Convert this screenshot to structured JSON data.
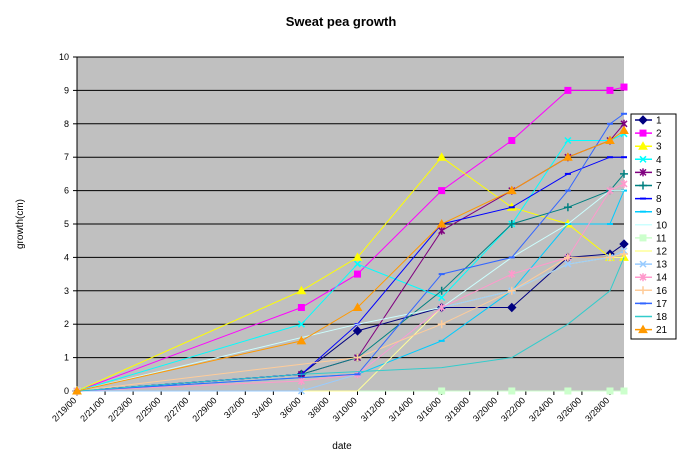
{
  "chart_data": {
    "type": "line",
    "title": "Sweat pea growth",
    "xlabel": "date",
    "ylabel": "growth(cm)",
    "ylim": [
      0,
      10
    ],
    "yticks": [
      "0",
      "1",
      "2",
      "3",
      "4",
      "5",
      "6",
      "7",
      "8",
      "9",
      "10"
    ],
    "xlim": [
      "2/19/00",
      "3/29/00"
    ],
    "xticks": [
      "2/19/00",
      "2/21/00",
      "2/23/00",
      "2/25/00",
      "2/27/00",
      "2/29/00",
      "3/2/00",
      "3/4/00",
      "3/6/00",
      "3/8/00",
      "3/10/00",
      "3/12/00",
      "3/14/00",
      "3/16/00",
      "3/18/00",
      "3/20/00",
      "3/22/00",
      "3/24/00",
      "3/26/00",
      "3/28/00"
    ],
    "grid": "horizontal",
    "legend": "right",
    "series": [
      {
        "name": "1",
        "color": "#000080",
        "marker": "diamond",
        "points": [
          [
            "2/19/00",
            0
          ],
          [
            "3/6/00",
            0.5
          ],
          [
            "3/10/00",
            1.8
          ],
          [
            "3/16/00",
            2.5
          ],
          [
            "3/21/00",
            2.5
          ],
          [
            "3/25/00",
            4
          ],
          [
            "3/28/00",
            4.1
          ],
          [
            "3/29/00",
            4.4
          ]
        ]
      },
      {
        "name": "2",
        "color": "#FF00FF",
        "marker": "square",
        "points": [
          [
            "2/19/00",
            0
          ],
          [
            "3/6/00",
            2.5
          ],
          [
            "3/10/00",
            3.5
          ],
          [
            "3/16/00",
            6
          ],
          [
            "3/21/00",
            7.5
          ],
          [
            "3/25/00",
            9
          ],
          [
            "3/28/00",
            9
          ],
          [
            "3/29/00",
            9.1
          ]
        ]
      },
      {
        "name": "3",
        "color": "#FFFF00",
        "marker": "triangle",
        "points": [
          [
            "2/19/00",
            0
          ],
          [
            "3/6/00",
            3
          ],
          [
            "3/10/00",
            4
          ],
          [
            "3/16/00",
            7
          ],
          [
            "3/21/00",
            5.5
          ],
          [
            "3/25/00",
            5
          ],
          [
            "3/28/00",
            4
          ],
          [
            "3/29/00",
            4
          ]
        ]
      },
      {
        "name": "4",
        "color": "#00FFFF",
        "marker": "x",
        "points": [
          [
            "2/19/00",
            0
          ],
          [
            "3/6/00",
            2
          ],
          [
            "3/10/00",
            3.8
          ],
          [
            "3/16/00",
            2.8
          ],
          [
            "3/21/00",
            5
          ],
          [
            "3/25/00",
            7.5
          ],
          [
            "3/28/00",
            7.5
          ],
          [
            "3/29/00",
            7.7
          ]
        ]
      },
      {
        "name": "5",
        "color": "#800080",
        "marker": "star",
        "points": [
          [
            "2/19/00",
            0
          ],
          [
            "3/6/00",
            0.5
          ],
          [
            "3/10/00",
            1
          ],
          [
            "3/16/00",
            4.8
          ],
          [
            "3/21/00",
            6
          ],
          [
            "3/25/00",
            7
          ],
          [
            "3/28/00",
            7.5
          ],
          [
            "3/29/00",
            8
          ]
        ]
      },
      {
        "name": "7",
        "color": "#008080",
        "marker": "plus",
        "points": [
          [
            "2/19/00",
            0
          ],
          [
            "3/6/00",
            0.5
          ],
          [
            "3/10/00",
            1
          ],
          [
            "3/16/00",
            3
          ],
          [
            "3/21/00",
            5
          ],
          [
            "3/25/00",
            5.5
          ],
          [
            "3/28/00",
            6
          ],
          [
            "3/29/00",
            6.5
          ]
        ]
      },
      {
        "name": "8",
        "color": "#0000FF",
        "marker": "dash",
        "points": [
          [
            "2/19/00",
            0
          ],
          [
            "3/6/00",
            0.5
          ],
          [
            "3/10/00",
            2
          ],
          [
            "3/16/00",
            5
          ],
          [
            "3/21/00",
            5.5
          ],
          [
            "3/25/00",
            6.5
          ],
          [
            "3/28/00",
            7
          ],
          [
            "3/29/00",
            7
          ]
        ]
      },
      {
        "name": "9",
        "color": "#00CCFF",
        "marker": "dash",
        "points": [
          [
            "2/19/00",
            0
          ],
          [
            "3/10/00",
            0.5
          ],
          [
            "3/16/00",
            1.5
          ],
          [
            "3/21/00",
            3
          ],
          [
            "3/25/00",
            5
          ],
          [
            "3/28/00",
            5
          ],
          [
            "3/29/00",
            6
          ]
        ]
      },
      {
        "name": "10",
        "color": "#CCFFFF",
        "marker": "none",
        "points": [
          [
            "2/19/00",
            0
          ],
          [
            "3/10/00",
            2
          ],
          [
            "3/16/00",
            2.5
          ],
          [
            "3/21/00",
            4
          ],
          [
            "3/25/00",
            5
          ],
          [
            "3/28/00",
            6
          ],
          [
            "3/29/00",
            6
          ]
        ]
      },
      {
        "name": "11",
        "color": "#CCFFCC",
        "marker": "square",
        "points": [
          [
            "2/19/00",
            0
          ],
          [
            "3/16/00",
            0
          ],
          [
            "3/21/00",
            0
          ],
          [
            "3/25/00",
            0
          ],
          [
            "3/28/00",
            0
          ],
          [
            "3/29/00",
            0
          ]
        ]
      },
      {
        "name": "12",
        "color": "#FFFF99",
        "marker": "none",
        "points": [
          [
            "2/19/00",
            0
          ],
          [
            "3/10/00",
            0
          ],
          [
            "3/16/00",
            2.5
          ],
          [
            "3/21/00",
            3
          ],
          [
            "3/25/00",
            3.8
          ],
          [
            "3/28/00",
            4
          ],
          [
            "3/29/00",
            4
          ]
        ]
      },
      {
        "name": "13",
        "color": "#99CCFF",
        "marker": "x",
        "points": [
          [
            "2/19/00",
            0
          ],
          [
            "3/6/00",
            0
          ],
          [
            "3/10/00",
            0.5
          ],
          [
            "3/16/00",
            2.5
          ],
          [
            "3/21/00",
            3
          ],
          [
            "3/25/00",
            3.8
          ],
          [
            "3/28/00",
            4
          ],
          [
            "3/29/00",
            4.2
          ]
        ]
      },
      {
        "name": "14",
        "color": "#FF99CC",
        "marker": "star",
        "points": [
          [
            "2/19/00",
            0
          ],
          [
            "3/6/00",
            0.3
          ],
          [
            "3/10/00",
            0.5
          ],
          [
            "3/16/00",
            2.5
          ],
          [
            "3/21/00",
            3.5
          ],
          [
            "3/25/00",
            4
          ],
          [
            "3/28/00",
            6
          ],
          [
            "3/29/00",
            6.2
          ]
        ]
      },
      {
        "name": "16",
        "color": "#FFCC99",
        "marker": "plus",
        "points": [
          [
            "2/19/00",
            0
          ],
          [
            "3/10/00",
            1
          ],
          [
            "3/16/00",
            2
          ],
          [
            "3/21/00",
            3
          ],
          [
            "3/25/00",
            4
          ],
          [
            "3/28/00",
            4
          ],
          [
            "3/29/00",
            4.1
          ]
        ]
      },
      {
        "name": "17",
        "color": "#3366FF",
        "marker": "dash",
        "points": [
          [
            "2/19/00",
            0
          ],
          [
            "3/10/00",
            0.5
          ],
          [
            "3/16/00",
            3.5
          ],
          [
            "3/21/00",
            4
          ],
          [
            "3/25/00",
            6
          ],
          [
            "3/28/00",
            8
          ],
          [
            "3/29/00",
            8.3
          ]
        ]
      },
      {
        "name": "18",
        "color": "#33CCCC",
        "marker": "none",
        "points": [
          [
            "2/19/00",
            0
          ],
          [
            "3/6/00",
            0.5
          ],
          [
            "3/16/00",
            0.7
          ],
          [
            "3/21/00",
            1
          ],
          [
            "3/25/00",
            2
          ],
          [
            "3/28/00",
            3
          ],
          [
            "3/29/00",
            4
          ]
        ]
      },
      {
        "name": "21",
        "color": "#FF9900",
        "marker": "triangle",
        "points": [
          [
            "2/19/00",
            0
          ],
          [
            "3/6/00",
            1.5
          ],
          [
            "3/10/00",
            2.5
          ],
          [
            "3/16/00",
            5
          ],
          [
            "3/21/00",
            6
          ],
          [
            "3/25/00",
            7
          ],
          [
            "3/28/00",
            7.5
          ],
          [
            "3/29/00",
            7.8
          ]
        ]
      }
    ]
  }
}
